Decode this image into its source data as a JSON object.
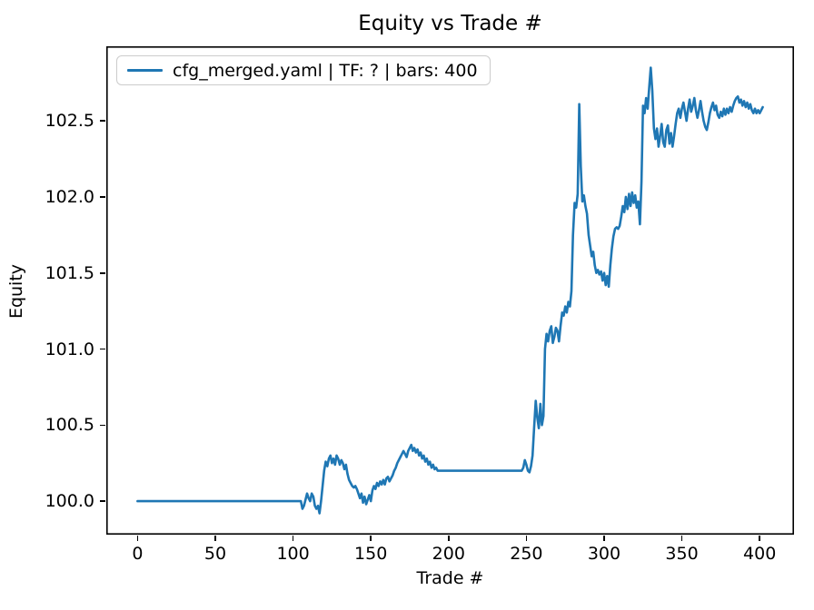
{
  "figure": {
    "background": "#ffffff",
    "text_color": "#000000",
    "spine_color": "#000000"
  },
  "chart_data": {
    "type": "line",
    "title": "Equity vs Trade #",
    "xlabel": "Trade #",
    "ylabel": "Equity",
    "grid": false,
    "xlim": [
      -20.1,
      422.1
    ],
    "ylim": [
      99.78,
      102.99
    ],
    "x_ticks": [
      {
        "v": 0,
        "label": "0"
      },
      {
        "v": 50,
        "label": "50"
      },
      {
        "v": 100,
        "label": "100"
      },
      {
        "v": 150,
        "label": "150"
      },
      {
        "v": 200,
        "label": "200"
      },
      {
        "v": 250,
        "label": "250"
      },
      {
        "v": 300,
        "label": "300"
      },
      {
        "v": 350,
        "label": "350"
      },
      {
        "v": 400,
        "label": "400"
      }
    ],
    "y_ticks": [
      {
        "v": 100.0,
        "label": "100.0"
      },
      {
        "v": 100.5,
        "label": "100.5"
      },
      {
        "v": 101.0,
        "label": "101.0"
      },
      {
        "v": 101.5,
        "label": "101.5"
      },
      {
        "v": 102.0,
        "label": "102.0"
      },
      {
        "v": 102.5,
        "label": "102.5"
      }
    ],
    "legend": {
      "position": "upper left",
      "entries": [
        {
          "label": "cfg_merged.yaml | TF: ? | bars: 400",
          "color": "#1f77b4"
        }
      ]
    },
    "series": [
      {
        "name": "cfg_merged.yaml | TF: ? | bars: 400",
        "color": "#1f77b4",
        "points": [
          [
            0,
            100.0
          ],
          [
            103,
            100.0
          ],
          [
            105,
            100.0
          ],
          [
            106,
            99.95
          ],
          [
            107,
            99.97
          ],
          [
            108,
            100.01
          ],
          [
            109,
            100.05
          ],
          [
            110,
            100.02
          ],
          [
            111,
            100.0
          ],
          [
            112,
            100.05
          ],
          [
            113,
            100.03
          ],
          [
            114,
            99.97
          ],
          [
            115,
            99.95
          ],
          [
            116,
            99.97
          ],
          [
            117,
            99.92
          ],
          [
            118,
            100.0
          ],
          [
            119,
            100.1
          ],
          [
            120,
            100.2
          ],
          [
            121,
            100.26
          ],
          [
            122,
            100.23
          ],
          [
            123,
            100.28
          ],
          [
            124,
            100.3
          ],
          [
            125,
            100.25
          ],
          [
            126,
            100.28
          ],
          [
            127,
            100.24
          ],
          [
            128,
            100.3
          ],
          [
            129,
            100.28
          ],
          [
            130,
            100.24
          ],
          [
            131,
            100.27
          ],
          [
            132,
            100.25
          ],
          [
            133,
            100.21
          ],
          [
            134,
            100.24
          ],
          [
            135,
            100.18
          ],
          [
            136,
            100.14
          ],
          [
            137,
            100.12
          ],
          [
            138,
            100.1
          ],
          [
            139,
            100.09
          ],
          [
            140,
            100.1
          ],
          [
            141,
            100.08
          ],
          [
            142,
            100.05
          ],
          [
            143,
            100.02
          ],
          [
            144,
            100.05
          ],
          [
            145,
            99.99
          ],
          [
            146,
            100.03
          ],
          [
            147,
            99.98
          ],
          [
            148,
            100.01
          ],
          [
            149,
            100.04
          ],
          [
            150,
            100.0
          ],
          [
            151,
            100.07
          ],
          [
            152,
            100.1
          ],
          [
            153,
            100.08
          ],
          [
            154,
            100.12
          ],
          [
            155,
            100.1
          ],
          [
            156,
            100.13
          ],
          [
            157,
            100.11
          ],
          [
            158,
            100.14
          ],
          [
            159,
            100.11
          ],
          [
            160,
            100.15
          ],
          [
            161,
            100.16
          ],
          [
            162,
            100.13
          ],
          [
            163,
            100.15
          ],
          [
            164,
            100.17
          ],
          [
            165,
            100.2
          ],
          [
            166,
            100.22
          ],
          [
            167,
            100.25
          ],
          [
            168,
            100.27
          ],
          [
            169,
            100.29
          ],
          [
            170,
            100.31
          ],
          [
            171,
            100.33
          ],
          [
            172,
            100.31
          ],
          [
            173,
            100.29
          ],
          [
            174,
            100.33
          ],
          [
            175,
            100.35
          ],
          [
            176,
            100.37
          ],
          [
            177,
            100.33
          ],
          [
            178,
            100.35
          ],
          [
            179,
            100.32
          ],
          [
            180,
            100.34
          ],
          [
            181,
            100.3
          ],
          [
            182,
            100.32
          ],
          [
            183,
            100.28
          ],
          [
            184,
            100.3
          ],
          [
            185,
            100.26
          ],
          [
            186,
            100.28
          ],
          [
            187,
            100.24
          ],
          [
            188,
            100.26
          ],
          [
            189,
            100.22
          ],
          [
            190,
            100.24
          ],
          [
            191,
            100.21
          ],
          [
            192,
            100.22
          ],
          [
            193,
            100.2
          ],
          [
            247,
            100.2
          ],
          [
            248,
            100.22
          ],
          [
            249,
            100.27
          ],
          [
            250,
            100.24
          ],
          [
            251,
            100.2
          ],
          [
            252,
            100.19
          ],
          [
            253,
            100.23
          ],
          [
            254,
            100.3
          ],
          [
            255,
            100.48
          ],
          [
            256,
            100.66
          ],
          [
            257,
            100.55
          ],
          [
            258,
            100.48
          ],
          [
            259,
            100.64
          ],
          [
            260,
            100.5
          ],
          [
            261,
            100.56
          ],
          [
            262,
            101.0
          ],
          [
            263,
            101.1
          ],
          [
            264,
            101.05
          ],
          [
            265,
            101.12
          ],
          [
            266,
            101.15
          ],
          [
            267,
            101.04
          ],
          [
            268,
            101.08
          ],
          [
            269,
            101.14
          ],
          [
            270,
            101.12
          ],
          [
            271,
            101.05
          ],
          [
            272,
            101.15
          ],
          [
            273,
            101.24
          ],
          [
            274,
            101.22
          ],
          [
            275,
            101.28
          ],
          [
            276,
            101.24
          ],
          [
            277,
            101.31
          ],
          [
            278,
            101.28
          ],
          [
            279,
            101.38
          ],
          [
            280,
            101.75
          ],
          [
            281,
            101.96
          ],
          [
            282,
            101.93
          ],
          [
            283,
            102.02
          ],
          [
            284,
            102.61
          ],
          [
            285,
            102.2
          ],
          [
            286,
            101.97
          ],
          [
            287,
            102.01
          ],
          [
            288,
            101.94
          ],
          [
            289,
            101.89
          ],
          [
            290,
            101.75
          ],
          [
            291,
            101.68
          ],
          [
            292,
            101.61
          ],
          [
            293,
            101.64
          ],
          [
            294,
            101.55
          ],
          [
            295,
            101.5
          ],
          [
            296,
            101.52
          ],
          [
            297,
            101.49
          ],
          [
            298,
            101.51
          ],
          [
            299,
            101.45
          ],
          [
            300,
            101.5
          ],
          [
            301,
            101.42
          ],
          [
            302,
            101.48
          ],
          [
            303,
            101.41
          ],
          [
            304,
            101.55
          ],
          [
            305,
            101.66
          ],
          [
            306,
            101.74
          ],
          [
            307,
            101.79
          ],
          [
            308,
            101.8
          ],
          [
            309,
            101.79
          ],
          [
            310,
            101.81
          ],
          [
            311,
            101.87
          ],
          [
            312,
            101.94
          ],
          [
            313,
            101.9
          ],
          [
            314,
            102.0
          ],
          [
            315,
            101.92
          ],
          [
            316,
            102.02
          ],
          [
            317,
            101.94
          ],
          [
            318,
            102.03
          ],
          [
            319,
            101.96
          ],
          [
            320,
            102.01
          ],
          [
            321,
            101.93
          ],
          [
            322,
            101.97
          ],
          [
            323,
            101.82
          ],
          [
            324,
            102.1
          ],
          [
            325,
            102.6
          ],
          [
            326,
            102.55
          ],
          [
            327,
            102.65
          ],
          [
            328,
            102.58
          ],
          [
            329,
            102.72
          ],
          [
            330,
            102.85
          ],
          [
            331,
            102.7
          ],
          [
            332,
            102.45
          ],
          [
            333,
            102.38
          ],
          [
            334,
            102.45
          ],
          [
            335,
            102.33
          ],
          [
            336,
            102.4
          ],
          [
            337,
            102.48
          ],
          [
            338,
            102.36
          ],
          [
            339,
            102.33
          ],
          [
            340,
            102.44
          ],
          [
            341,
            102.47
          ],
          [
            342,
            102.35
          ],
          [
            343,
            102.42
          ],
          [
            344,
            102.33
          ],
          [
            345,
            102.4
          ],
          [
            346,
            102.48
          ],
          [
            347,
            102.55
          ],
          [
            348,
            102.58
          ],
          [
            349,
            102.52
          ],
          [
            350,
            102.58
          ],
          [
            351,
            102.62
          ],
          [
            352,
            102.56
          ],
          [
            353,
            102.5
          ],
          [
            354,
            102.58
          ],
          [
            355,
            102.64
          ],
          [
            356,
            102.56
          ],
          [
            357,
            102.6
          ],
          [
            358,
            102.65
          ],
          [
            359,
            102.57
          ],
          [
            360,
            102.52
          ],
          [
            361,
            102.57
          ],
          [
            362,
            102.63
          ],
          [
            363,
            102.56
          ],
          [
            364,
            102.5
          ],
          [
            365,
            102.46
          ],
          [
            366,
            102.44
          ],
          [
            367,
            102.49
          ],
          [
            368,
            102.55
          ],
          [
            369,
            102.59
          ],
          [
            370,
            102.62
          ],
          [
            371,
            102.57
          ],
          [
            372,
            102.6
          ],
          [
            373,
            102.54
          ],
          [
            374,
            102.52
          ],
          [
            375,
            102.56
          ],
          [
            376,
            102.53
          ],
          [
            377,
            102.58
          ],
          [
            378,
            102.54
          ],
          [
            379,
            102.58
          ],
          [
            380,
            102.55
          ],
          [
            381,
            102.59
          ],
          [
            382,
            102.56
          ],
          [
            383,
            102.6
          ],
          [
            384,
            102.63
          ],
          [
            385,
            102.65
          ],
          [
            386,
            102.66
          ],
          [
            387,
            102.62
          ],
          [
            388,
            102.64
          ],
          [
            389,
            102.6
          ],
          [
            390,
            102.63
          ],
          [
            391,
            102.59
          ],
          [
            392,
            102.62
          ],
          [
            393,
            102.58
          ],
          [
            394,
            102.61
          ],
          [
            395,
            102.57
          ],
          [
            396,
            102.55
          ],
          [
            397,
            102.58
          ],
          [
            398,
            102.55
          ],
          [
            399,
            102.57
          ],
          [
            400,
            102.55
          ],
          [
            401,
            102.57
          ],
          [
            402,
            102.59
          ]
        ]
      }
    ]
  }
}
